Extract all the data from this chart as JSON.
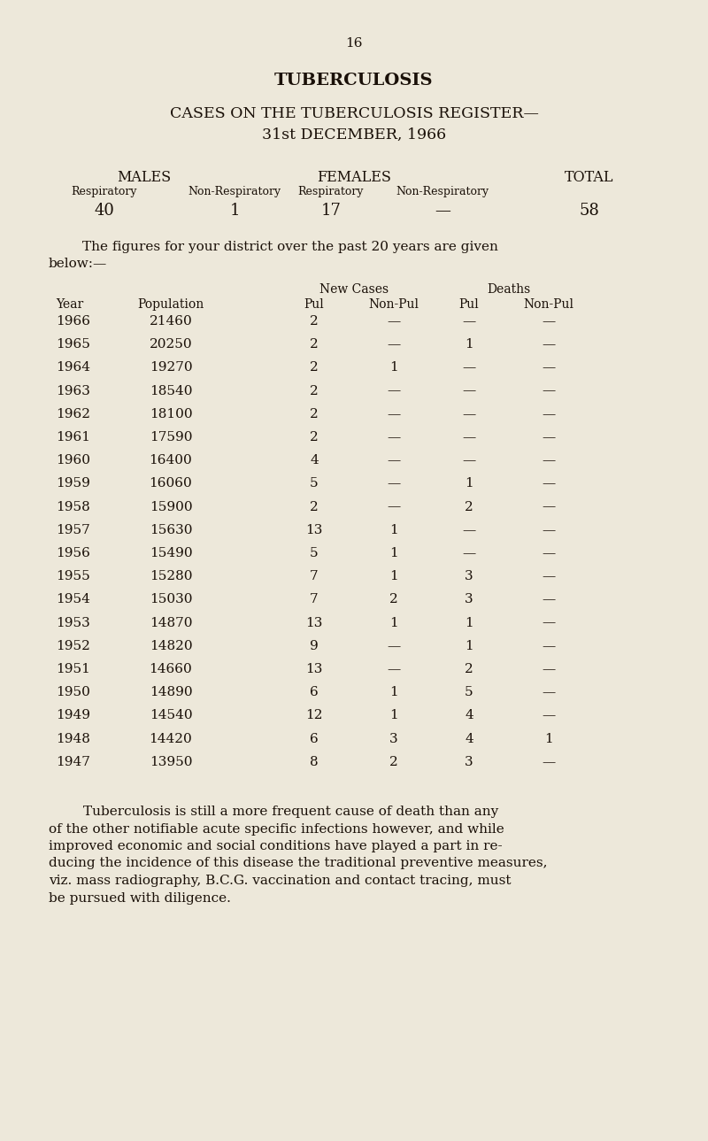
{
  "page_number": "16",
  "title1": "TUBERCULOSIS",
  "title2": "CASES ON THE TUBERCULOSIS REGISTER—",
  "title3": "31st DECEMBER, 1966",
  "males_label": "MALES",
  "females_label": "FEMALES",
  "total_label": "TOTAL",
  "sub_respiratory": "Respiratory",
  "sub_non_respiratory": "Non-Respiratory",
  "register_values": [
    "40",
    "1",
    "17",
    "—",
    "58"
  ],
  "intro_line1": "The figures for your district over the past 20 years are given",
  "intro_line2": "below:—",
  "new_cases_label": "New Cases",
  "deaths_label": "Deaths",
  "table_col_headers": [
    "Year",
    "Population",
    "Pul",
    "Non-Pul",
    "Pul",
    "Non-Pul"
  ],
  "table_data": [
    [
      "1966",
      "21460",
      "2",
      "—",
      "—",
      "—"
    ],
    [
      "1965",
      "20250",
      "2",
      "—",
      "1",
      "—"
    ],
    [
      "1964",
      "19270",
      "2",
      "1",
      "—",
      "—"
    ],
    [
      "1963",
      "18540",
      "2",
      "—",
      "—",
      "—"
    ],
    [
      "1962",
      "18100",
      "2",
      "—",
      "—",
      "—"
    ],
    [
      "1961",
      "17590",
      "2",
      "—",
      "—",
      "—"
    ],
    [
      "1960",
      "16400",
      "4",
      "—",
      "—",
      "—"
    ],
    [
      "1959",
      "16060",
      "5",
      "—",
      "1",
      "—"
    ],
    [
      "1958",
      "15900",
      "2",
      "—",
      "2",
      "—"
    ],
    [
      "1957",
      "15630",
      "13",
      "1",
      "—",
      "—"
    ],
    [
      "1956",
      "15490",
      "5",
      "1",
      "—",
      "—"
    ],
    [
      "1955",
      "15280",
      "7",
      "1",
      "3",
      "—"
    ],
    [
      "1954",
      "15030",
      "7",
      "2",
      "3",
      "—"
    ],
    [
      "1953",
      "14870",
      "13",
      "1",
      "1",
      "—"
    ],
    [
      "1952",
      "14820",
      "9",
      "—",
      "1",
      "—"
    ],
    [
      "1951",
      "14660",
      "13",
      "—",
      "2",
      "—"
    ],
    [
      "1950",
      "14890",
      "6",
      "1",
      "5",
      "—"
    ],
    [
      "1949",
      "14540",
      "12",
      "1",
      "4",
      "—"
    ],
    [
      "1948",
      "14420",
      "6",
      "3",
      "4",
      "1"
    ],
    [
      "1947",
      "13950",
      "8",
      "2",
      "3",
      "—"
    ]
  ],
  "footer_text": "Tuberculosis is still a more frequent cause of death than any of the other notifiable acute specific infections however, and while improved economic and social conditions have played a part in re­ducing the incidence of this disease the traditional preventive measures, viz. mass radiography, B.C.G. vaccination and contact tracing, must be pursued with diligence.",
  "footer_line1": "        Tuberculosis is still a more frequent cause of death than any",
  "footer_line2": "of the other notifiable acute specific infections however, and while",
  "footer_line3": "improved economic and social conditions have played a part in re-",
  "footer_line4": "ducing the incidence of this disease the traditional preventive measures,",
  "footer_line5": "viz. mass radiography, B.C.G. vaccination and contact tracing, must",
  "footer_line6": "be pursued with diligence.",
  "bg_color": "#ede8da",
  "text_color": "#1a1008"
}
